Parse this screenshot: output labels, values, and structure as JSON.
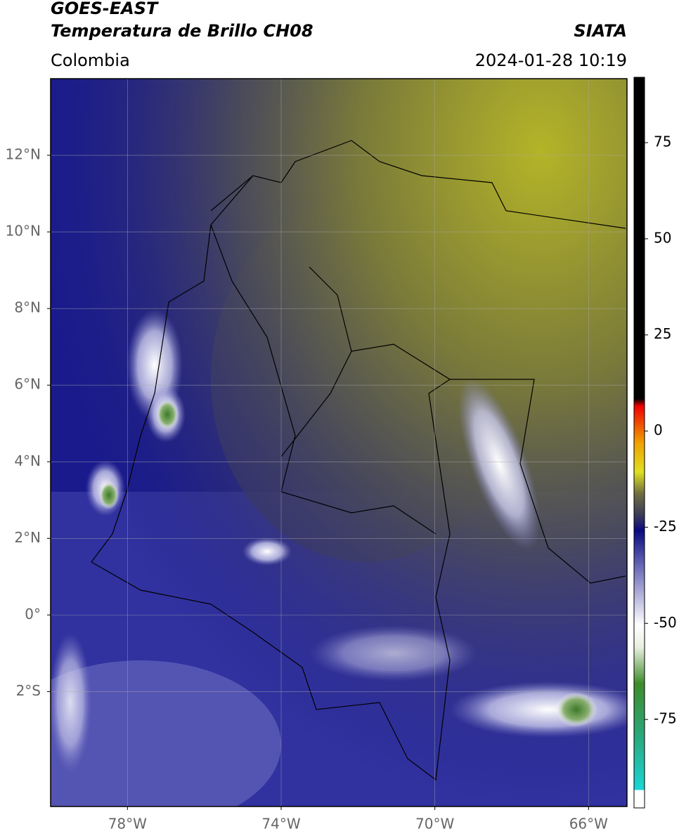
{
  "header": {
    "title": "GOES-EAST",
    "subtitle": "Temperatura de Brillo CH08",
    "source": "SIATA",
    "region": "Colombia",
    "timestamp": "2024-01-28 10:19"
  },
  "map": {
    "lon_range": [
      -80,
      -65
    ],
    "lat_range": [
      -5,
      14
    ],
    "lon_ticks": [
      {
        "value": -78,
        "label": "78°W"
      },
      {
        "value": -74,
        "label": "74°W"
      },
      {
        "value": -70,
        "label": "70°W"
      },
      {
        "value": -66,
        "label": "66°W"
      }
    ],
    "lat_ticks": [
      {
        "value": 12,
        "label": "12°N"
      },
      {
        "value": 10,
        "label": "10°N"
      },
      {
        "value": 8,
        "label": "8°N"
      },
      {
        "value": 6,
        "label": "6°N"
      },
      {
        "value": 4,
        "label": "4°N"
      },
      {
        "value": 2,
        "label": "2°N"
      },
      {
        "value": 0,
        "label": "0°"
      },
      {
        "value": -2,
        "label": "2°S"
      }
    ],
    "grid": true
  },
  "colorbar": {
    "range": [
      -98,
      92
    ],
    "ticks": [
      75,
      50,
      25,
      0,
      -25,
      -50,
      -75
    ]
  }
}
